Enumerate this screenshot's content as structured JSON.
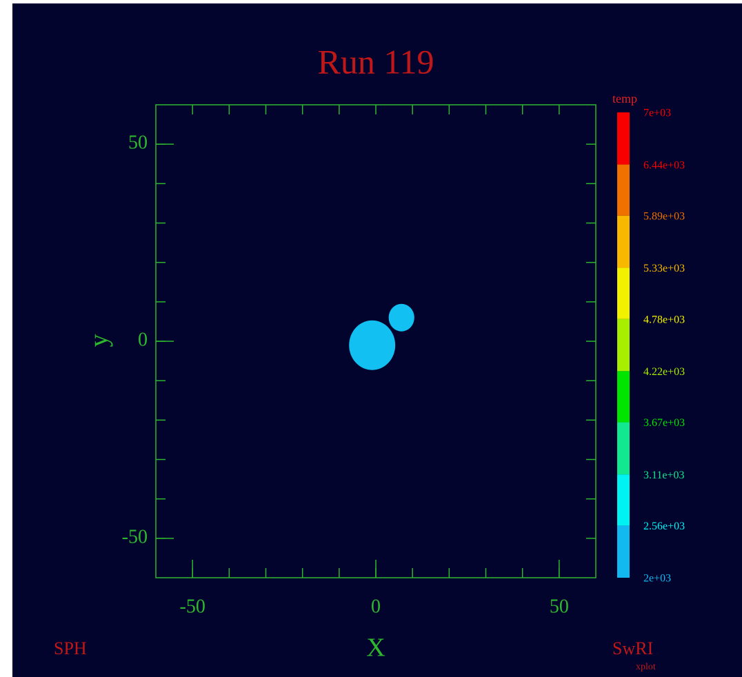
{
  "chart_data": {
    "type": "scatter",
    "title": "Run 119",
    "xlabel": "X",
    "ylabel": "y",
    "xlim": [
      -60,
      60
    ],
    "ylim": [
      -60,
      60
    ],
    "xticks": [
      -50,
      0,
      50
    ],
    "yticks": [
      -50,
      0,
      50
    ],
    "xminorticks": [
      -50,
      -40,
      -30,
      -20,
      -10,
      0,
      10,
      20,
      30,
      40,
      50
    ],
    "yminorticks": [
      -50,
      -40,
      -30,
      -20,
      -10,
      0,
      10,
      20,
      30,
      40,
      50
    ],
    "axis_color": "#2db82d",
    "points": {
      "x": [
        -1,
        7
      ],
      "y": [
        -1,
        6
      ],
      "size": [
        6.3,
        3.5
      ],
      "color": "#12c0f2"
    },
    "colorbar": {
      "label": "temp",
      "ticks": [
        {
          "value": 2000,
          "label": "2e+03"
        },
        {
          "value": 2560,
          "label": "2.56e+03"
        },
        {
          "value": 3110,
          "label": "3.11e+03"
        },
        {
          "value": 3670,
          "label": "3.67e+03"
        },
        {
          "value": 4220,
          "label": "4.22e+03"
        },
        {
          "value": 4780,
          "label": "4.78e+03"
        },
        {
          "value": 5330,
          "label": "5.33e+03"
        },
        {
          "value": 5890,
          "label": "5.89e+03"
        },
        {
          "value": 6440,
          "label": "6.44e+03"
        },
        {
          "value": 7000,
          "label": "7e+03"
        }
      ],
      "colors": [
        "#12b8f0",
        "#00f2f2",
        "#12e890",
        "#00e400",
        "#a8ee00",
        "#f2f200",
        "#f8b800",
        "#f07000",
        "#f80000"
      ]
    },
    "annotations": [
      "SPH",
      "SwRI",
      "xplot"
    ]
  }
}
